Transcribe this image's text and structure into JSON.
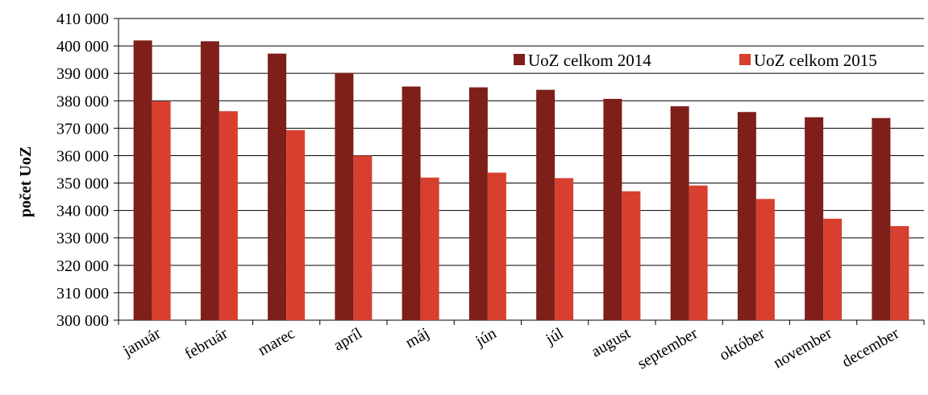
{
  "chart_data": {
    "type": "bar",
    "title": "",
    "xlabel": "",
    "ylabel": "počet UoZ",
    "ylim": [
      300000,
      410000
    ],
    "ytick_step": 10000,
    "ytick_labels": [
      "300 000",
      "310 000",
      "320 000",
      "330 000",
      "340 000",
      "350 000",
      "360 000",
      "370 000",
      "380 000",
      "390 000",
      "400 000",
      "410 000"
    ],
    "grid": true,
    "legend_position": "top-right",
    "categories": [
      "január",
      "február",
      "marec",
      "apríl",
      "máj",
      "jún",
      "júl",
      "august",
      "september",
      "október",
      "november",
      "december"
    ],
    "series": [
      {
        "name": "UoZ celkom 2014",
        "color": "#7f1f1a",
        "values": [
          402000,
          401700,
          397200,
          390100,
          385200,
          384900,
          384000,
          380700,
          378000,
          375900,
          374000,
          373700
        ]
      },
      {
        "name": "UoZ celkom 2015",
        "color": "#d83f2f",
        "values": [
          379800,
          376200,
          369300,
          360000,
          352000,
          353800,
          351800,
          347000,
          349100,
          344200,
          337000,
          334300
        ]
      }
    ]
  }
}
